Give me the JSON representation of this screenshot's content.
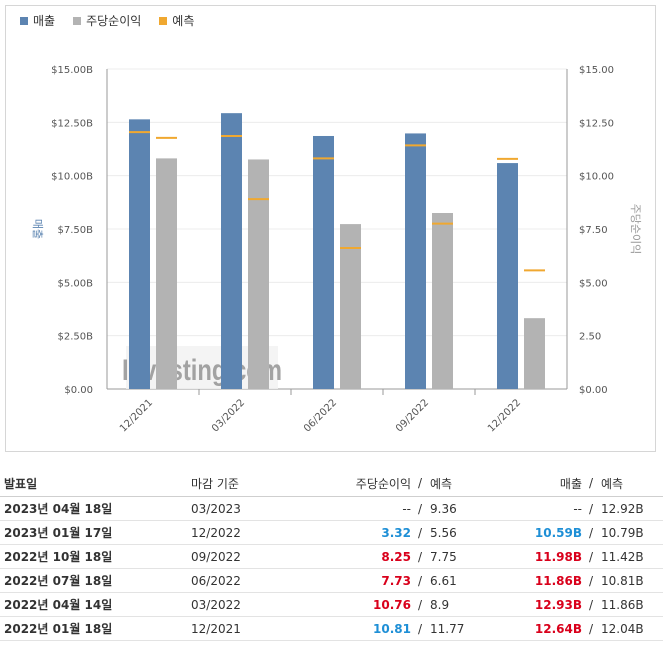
{
  "legend": [
    {
      "label": "매출",
      "color": "#5c84b1"
    },
    {
      "label": "주당순이익",
      "color": "#b3b3b3"
    },
    {
      "label": "예측",
      "color": "#f0a830"
    }
  ],
  "chart_data": {
    "type": "bar",
    "categories": [
      "12/2021",
      "03/2022",
      "06/2022",
      "09/2022",
      "12/2022"
    ],
    "series": [
      {
        "name": "매출",
        "values": [
          12.64,
          12.93,
          11.86,
          11.98,
          10.59
        ],
        "color": "#5c84b1"
      },
      {
        "name": "주당순이익",
        "values": [
          10.81,
          10.76,
          7.73,
          8.25,
          3.32
        ],
        "color": "#b3b3b3"
      }
    ],
    "forecast": {
      "revenue": [
        12.04,
        11.86,
        10.81,
        11.42,
        10.79
      ],
      "eps": [
        11.77,
        8.9,
        6.61,
        7.75,
        5.56
      ],
      "color": "#f0a830"
    },
    "y_left_ticks": [
      "$0.00",
      "$2.50B",
      "$5.00B",
      "$7.50B",
      "$10.00B",
      "$12.50B",
      "$15.00B"
    ],
    "y_right_ticks": [
      "$0.00",
      "2.50",
      "$5.00",
      "$7.50",
      "$10.00",
      "$12.50",
      "$15.00"
    ],
    "ylim": [
      0,
      15
    ],
    "ylabel_left": "매출",
    "ylabel_right": "주당순이익",
    "grid": true,
    "watermark": "Investing.com"
  },
  "table": {
    "headers": {
      "date": "발표일",
      "period": "마감 기준",
      "eps": "주당순이익",
      "eps_forecast": "예측",
      "revenue": "매출",
      "revenue_forecast": "예측",
      "slash": "/"
    },
    "rows": [
      {
        "date": "2023년 04월 18일",
        "period": "03/2023",
        "eps": "--",
        "eps_cls": "neutral",
        "eps_forecast": "9.36",
        "revenue": "--",
        "rev_cls": "neutral",
        "revenue_forecast": "12.92B"
      },
      {
        "date": "2023년 01월 17일",
        "period": "12/2022",
        "eps": "3.32",
        "eps_cls": "down",
        "eps_forecast": "5.56",
        "revenue": "10.59B",
        "rev_cls": "down",
        "revenue_forecast": "10.79B"
      },
      {
        "date": "2022년 10월 18일",
        "period": "09/2022",
        "eps": "8.25",
        "eps_cls": "up",
        "eps_forecast": "7.75",
        "revenue": "11.98B",
        "rev_cls": "up",
        "revenue_forecast": "11.42B"
      },
      {
        "date": "2022년 07월 18일",
        "period": "06/2022",
        "eps": "7.73",
        "eps_cls": "up",
        "eps_forecast": "6.61",
        "revenue": "11.86B",
        "rev_cls": "up",
        "revenue_forecast": "10.81B"
      },
      {
        "date": "2022년 04월 14일",
        "period": "03/2022",
        "eps": "10.76",
        "eps_cls": "up",
        "eps_forecast": "8.9",
        "revenue": "12.93B",
        "rev_cls": "up",
        "revenue_forecast": "11.86B"
      },
      {
        "date": "2022년 01월 18일",
        "period": "12/2021",
        "eps": "10.81",
        "eps_cls": "down",
        "eps_forecast": "11.77",
        "revenue": "12.64B",
        "rev_cls": "up",
        "revenue_forecast": "12.04B"
      }
    ]
  }
}
